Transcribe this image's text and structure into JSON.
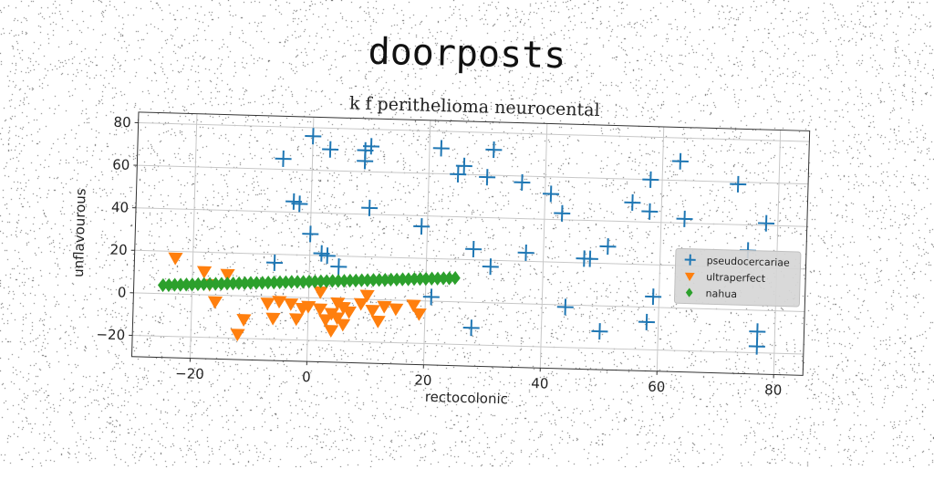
{
  "suptitle": "doorposts",
  "chart_data": {
    "type": "scatter",
    "title": "k f perithelioma neurocental",
    "xlabel": "rectocolonic",
    "ylabel": "unflavourous",
    "xlim": [
      -30,
      85
    ],
    "ylim": [
      -30,
      85
    ],
    "xticks": [
      -20,
      0,
      20,
      40,
      60,
      80
    ],
    "yticks": [
      -20,
      0,
      20,
      40,
      60,
      80
    ],
    "grid": true,
    "legend_position": "center-right",
    "series": [
      {
        "name": "pseudocercariae",
        "marker": "plus",
        "color": "#1f77b4",
        "points": [
          [
            -5,
            65
          ],
          [
            -3,
            45
          ],
          [
            -2,
            44
          ],
          [
            0,
            76
          ],
          [
            0,
            30
          ],
          [
            2,
            21
          ],
          [
            3,
            70
          ],
          [
            3,
            20
          ],
          [
            5,
            15
          ],
          [
            -6,
            16
          ],
          [
            9,
            65
          ],
          [
            9,
            70
          ],
          [
            10,
            72
          ],
          [
            10,
            43
          ],
          [
            19,
            35
          ],
          [
            21,
            2
          ],
          [
            22,
            72
          ],
          [
            25,
            60
          ],
          [
            26,
            64
          ],
          [
            28,
            25
          ],
          [
            28,
            -12
          ],
          [
            30,
            59
          ],
          [
            31,
            72
          ],
          [
            31,
            17
          ],
          [
            36,
            57
          ],
          [
            37,
            24
          ],
          [
            41,
            52
          ],
          [
            43,
            43
          ],
          [
            44,
            -1
          ],
          [
            47,
            22
          ],
          [
            48,
            22
          ],
          [
            50,
            -12
          ],
          [
            51,
            28
          ],
          [
            55,
            49
          ],
          [
            58,
            60
          ],
          [
            58,
            45
          ],
          [
            58,
            -7
          ],
          [
            59,
            5
          ],
          [
            63,
            69
          ],
          [
            64,
            42
          ],
          [
            73,
            59
          ],
          [
            75,
            28
          ],
          [
            78,
            41
          ],
          [
            77,
            -10
          ],
          [
            77,
            -17
          ]
        ]
      },
      {
        "name": "ultraperfect",
        "marker": "triangle-down",
        "color": "#ff7f0e",
        "points": [
          [
            -23,
            17
          ],
          [
            -18,
            11
          ],
          [
            -17,
            5
          ],
          [
            -16,
            -3
          ],
          [
            -14,
            10
          ],
          [
            -12,
            -18
          ],
          [
            -11,
            -11
          ],
          [
            -7,
            -3
          ],
          [
            -6,
            -10
          ],
          [
            -5,
            -2
          ],
          [
            -3,
            -3
          ],
          [
            -2,
            -10
          ],
          [
            -1,
            -5
          ],
          [
            0,
            -4
          ],
          [
            2,
            3
          ],
          [
            2,
            -5
          ],
          [
            3,
            -10
          ],
          [
            4,
            -7
          ],
          [
            4,
            -15
          ],
          [
            5,
            -2
          ],
          [
            5,
            -9
          ],
          [
            6,
            -12
          ],
          [
            6,
            -4
          ],
          [
            7,
            -6
          ],
          [
            9,
            -2
          ],
          [
            10,
            2
          ],
          [
            11,
            -5
          ],
          [
            12,
            -10
          ],
          [
            13,
            -3
          ],
          [
            15,
            -4
          ],
          [
            18,
            -2
          ],
          [
            19,
            -6
          ]
        ]
      },
      {
        "name": "nahua",
        "marker": "diamond",
        "color": "#2ca02c",
        "points": [
          [
            -25,
            4.0
          ],
          [
            -24,
            4.1
          ],
          [
            -23,
            4.3
          ],
          [
            -22,
            4.4
          ],
          [
            -21,
            4.6
          ],
          [
            -20,
            4.7
          ],
          [
            -19,
            4.9
          ],
          [
            -18,
            5.0
          ],
          [
            -17,
            5.2
          ],
          [
            -16,
            5.3
          ],
          [
            -15,
            5.4
          ],
          [
            -14,
            5.6
          ],
          [
            -13,
            5.7
          ],
          [
            -12,
            5.9
          ],
          [
            -11,
            6.0
          ],
          [
            -10,
            6.2
          ],
          [
            -9,
            6.3
          ],
          [
            -8,
            6.4
          ],
          [
            -7,
            6.6
          ],
          [
            -6,
            6.7
          ],
          [
            -5,
            6.9
          ],
          [
            -4,
            7.0
          ],
          [
            -3,
            7.2
          ],
          [
            -2,
            7.3
          ],
          [
            -1,
            7.4
          ],
          [
            0,
            7.6
          ],
          [
            1,
            7.7
          ],
          [
            2,
            7.9
          ],
          [
            3,
            8.0
          ],
          [
            4,
            8.2
          ],
          [
            5,
            8.3
          ],
          [
            6,
            8.4
          ],
          [
            7,
            8.6
          ],
          [
            8,
            8.7
          ],
          [
            9,
            8.9
          ],
          [
            10,
            9.0
          ],
          [
            11,
            9.2
          ],
          [
            12,
            9.3
          ],
          [
            13,
            9.4
          ],
          [
            14,
            9.6
          ],
          [
            15,
            9.7
          ],
          [
            16,
            9.9
          ],
          [
            17,
            10.0
          ],
          [
            18,
            10.2
          ],
          [
            19,
            10.3
          ],
          [
            20,
            10.4
          ],
          [
            21,
            10.6
          ],
          [
            22,
            10.7
          ],
          [
            23,
            10.9
          ],
          [
            24,
            11.0
          ],
          [
            25,
            11.2
          ]
        ]
      }
    ]
  }
}
